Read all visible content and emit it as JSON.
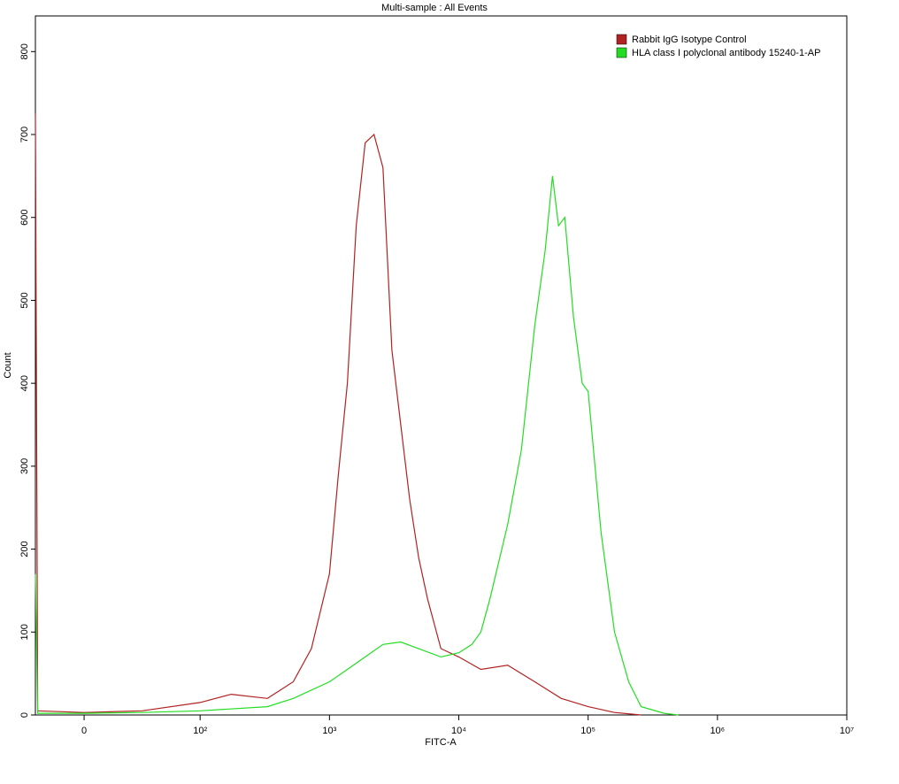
{
  "chart_data": {
    "type": "line",
    "title": "Multi-sample : All Events",
    "x_label": "FITC-A",
    "y_label": "Count",
    "xlim": [
      -42,
      10000000
    ],
    "ylim": [
      0,
      843
    ],
    "xticks": [
      0,
      {
        "value": 100,
        "label": "10²"
      },
      {
        "value": 1000,
        "label": "10³"
      },
      {
        "value": 10000,
        "label": "10⁴"
      },
      {
        "value": 100000,
        "label": "10⁵"
      },
      {
        "value": 1000000,
        "label": "10⁶"
      },
      {
        "value": 10000000,
        "label": "10⁷"
      }
    ],
    "yticks": [
      0,
      100,
      200,
      300,
      400,
      500,
      600,
      700,
      800
    ],
    "legend": "top-right",
    "series": [
      {
        "name": "Rabbit  IgG Isotype Control",
        "color": "#b22222",
        "x": [
          -42,
          -40,
          0,
          50,
          100,
          174,
          331,
          525,
          725,
          1000,
          1172,
          1375,
          1610,
          1890,
          2210,
          2590,
          3040,
          3560,
          4170,
          4890,
          5730,
          7270,
          10000,
          14800,
          23900,
          38700,
          62000,
          100000,
          160000,
          257000
        ],
        "values": [
          725,
          5,
          3,
          5,
          15,
          25,
          20,
          40,
          80,
          170,
          290,
          400,
          590,
          690,
          700,
          660,
          440,
          350,
          260,
          190,
          140,
          80,
          70,
          55,
          60,
          40,
          20,
          10,
          3,
          0
        ]
      },
      {
        "name": "HLA class I  polyclonal antibody 15240-1-AP",
        "color": "#22dd22",
        "x": [
          -42,
          -40,
          0,
          50,
          100,
          331,
          525,
          1000,
          1375,
          1890,
          2590,
          3560,
          4890,
          7270,
          10000,
          12600,
          14800,
          17400,
          23900,
          30500,
          38700,
          46500,
          53000,
          59000,
          66000,
          77000,
          90000,
          100000,
          126000,
          160000,
          206000,
          257000,
          388000,
          500000
        ],
        "values": [
          170,
          2,
          2,
          3,
          5,
          10,
          20,
          40,
          55,
          70,
          85,
          88,
          80,
          70,
          75,
          85,
          100,
          140,
          230,
          320,
          470,
          560,
          650,
          590,
          600,
          480,
          400,
          390,
          220,
          100,
          40,
          10,
          2,
          0
        ]
      }
    ]
  }
}
